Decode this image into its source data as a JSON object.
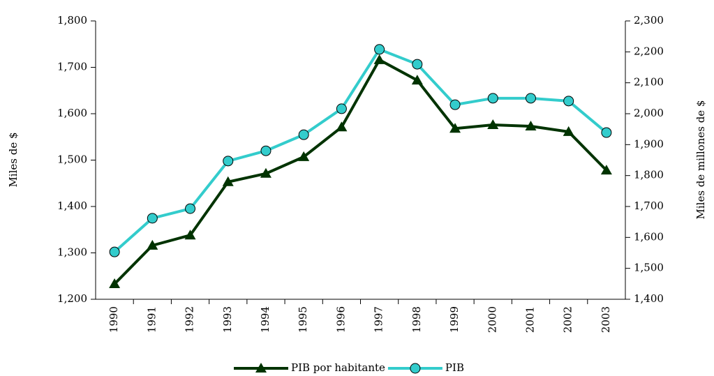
{
  "chart_data": {
    "type": "line",
    "categories": [
      "1990",
      "1991",
      "1992",
      "1993",
      "1994",
      "1995",
      "1996",
      "1997",
      "1998",
      "1999",
      "2000",
      "2001",
      "2002",
      "2003"
    ],
    "series": [
      {
        "name": "PIB por habitante",
        "color": "#003300",
        "marker": "triangle",
        "values": [
          1233,
          1316,
          1338,
          1453,
          1471,
          1507,
          1571,
          1716,
          1672,
          1568,
          1576,
          1573,
          1561,
          1478
        ]
      },
      {
        "name": "PIB",
        "color": "#33cccc",
        "marker": "circle",
        "axis": "y2",
        "values": [
          1553,
          1662,
          1693,
          1847,
          1880,
          1932,
          2016,
          2208,
          2160,
          2029,
          2050,
          2050,
          2041,
          1939
        ]
      }
    ],
    "ylabel": "Miles de $",
    "y2label": "Miles de millones de $",
    "ylim": [
      1200,
      1800
    ],
    "yticks": [
      {
        "value": 1200,
        "label": "1,200"
      },
      {
        "value": 1300,
        "label": "1,300"
      },
      {
        "value": 1400,
        "label": "1,400"
      },
      {
        "value": 1500,
        "label": "1,500"
      },
      {
        "value": 1600,
        "label": "1,600"
      },
      {
        "value": 1700,
        "label": "1,700"
      },
      {
        "value": 1800,
        "label": "1,800"
      }
    ],
    "y2lim": [
      1400,
      2300
    ],
    "y2ticks": [
      {
        "value": 1400,
        "label": "1,400"
      },
      {
        "value": 1500,
        "label": "1,500"
      },
      {
        "value": 1600,
        "label": "1,600"
      },
      {
        "value": 1700,
        "label": "1,700"
      },
      {
        "value": 1800,
        "label": "1,800"
      },
      {
        "value": 1900,
        "label": "1,900"
      },
      {
        "value": 2000,
        "label": "2,000"
      },
      {
        "value": 2100,
        "label": "2,100"
      },
      {
        "value": 2200,
        "label": "2,200"
      },
      {
        "value": 2300,
        "label": "2,300"
      }
    ],
    "legend": "bottom"
  }
}
